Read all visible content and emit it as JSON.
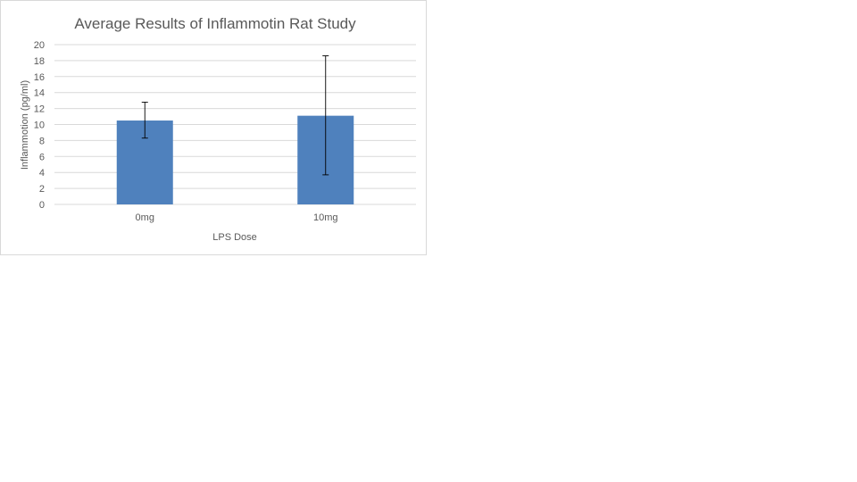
{
  "chart_data": {
    "type": "bar",
    "title": "Average Results of Inflammotin Rat Study",
    "xlabel": "LPS Dose",
    "ylabel": "Inflammotion (pg/ml)",
    "categories": [
      "0mg",
      "10mg"
    ],
    "values": [
      10.5,
      11.1
    ],
    "error_bars": [
      {
        "low": 8.3,
        "high": 12.8
      },
      {
        "low": 3.7,
        "high": 18.6
      }
    ],
    "yticks": [
      "0",
      "2",
      "4",
      "6",
      "8",
      "10",
      "12",
      "14",
      "16",
      "18",
      "20"
    ],
    "ylim": [
      0,
      20
    ],
    "grid": true,
    "legend": "none",
    "colors": {
      "bar": "#4f81bd",
      "grid": "#d9d9d9",
      "text": "#595959",
      "error_bar": "#000000"
    }
  }
}
